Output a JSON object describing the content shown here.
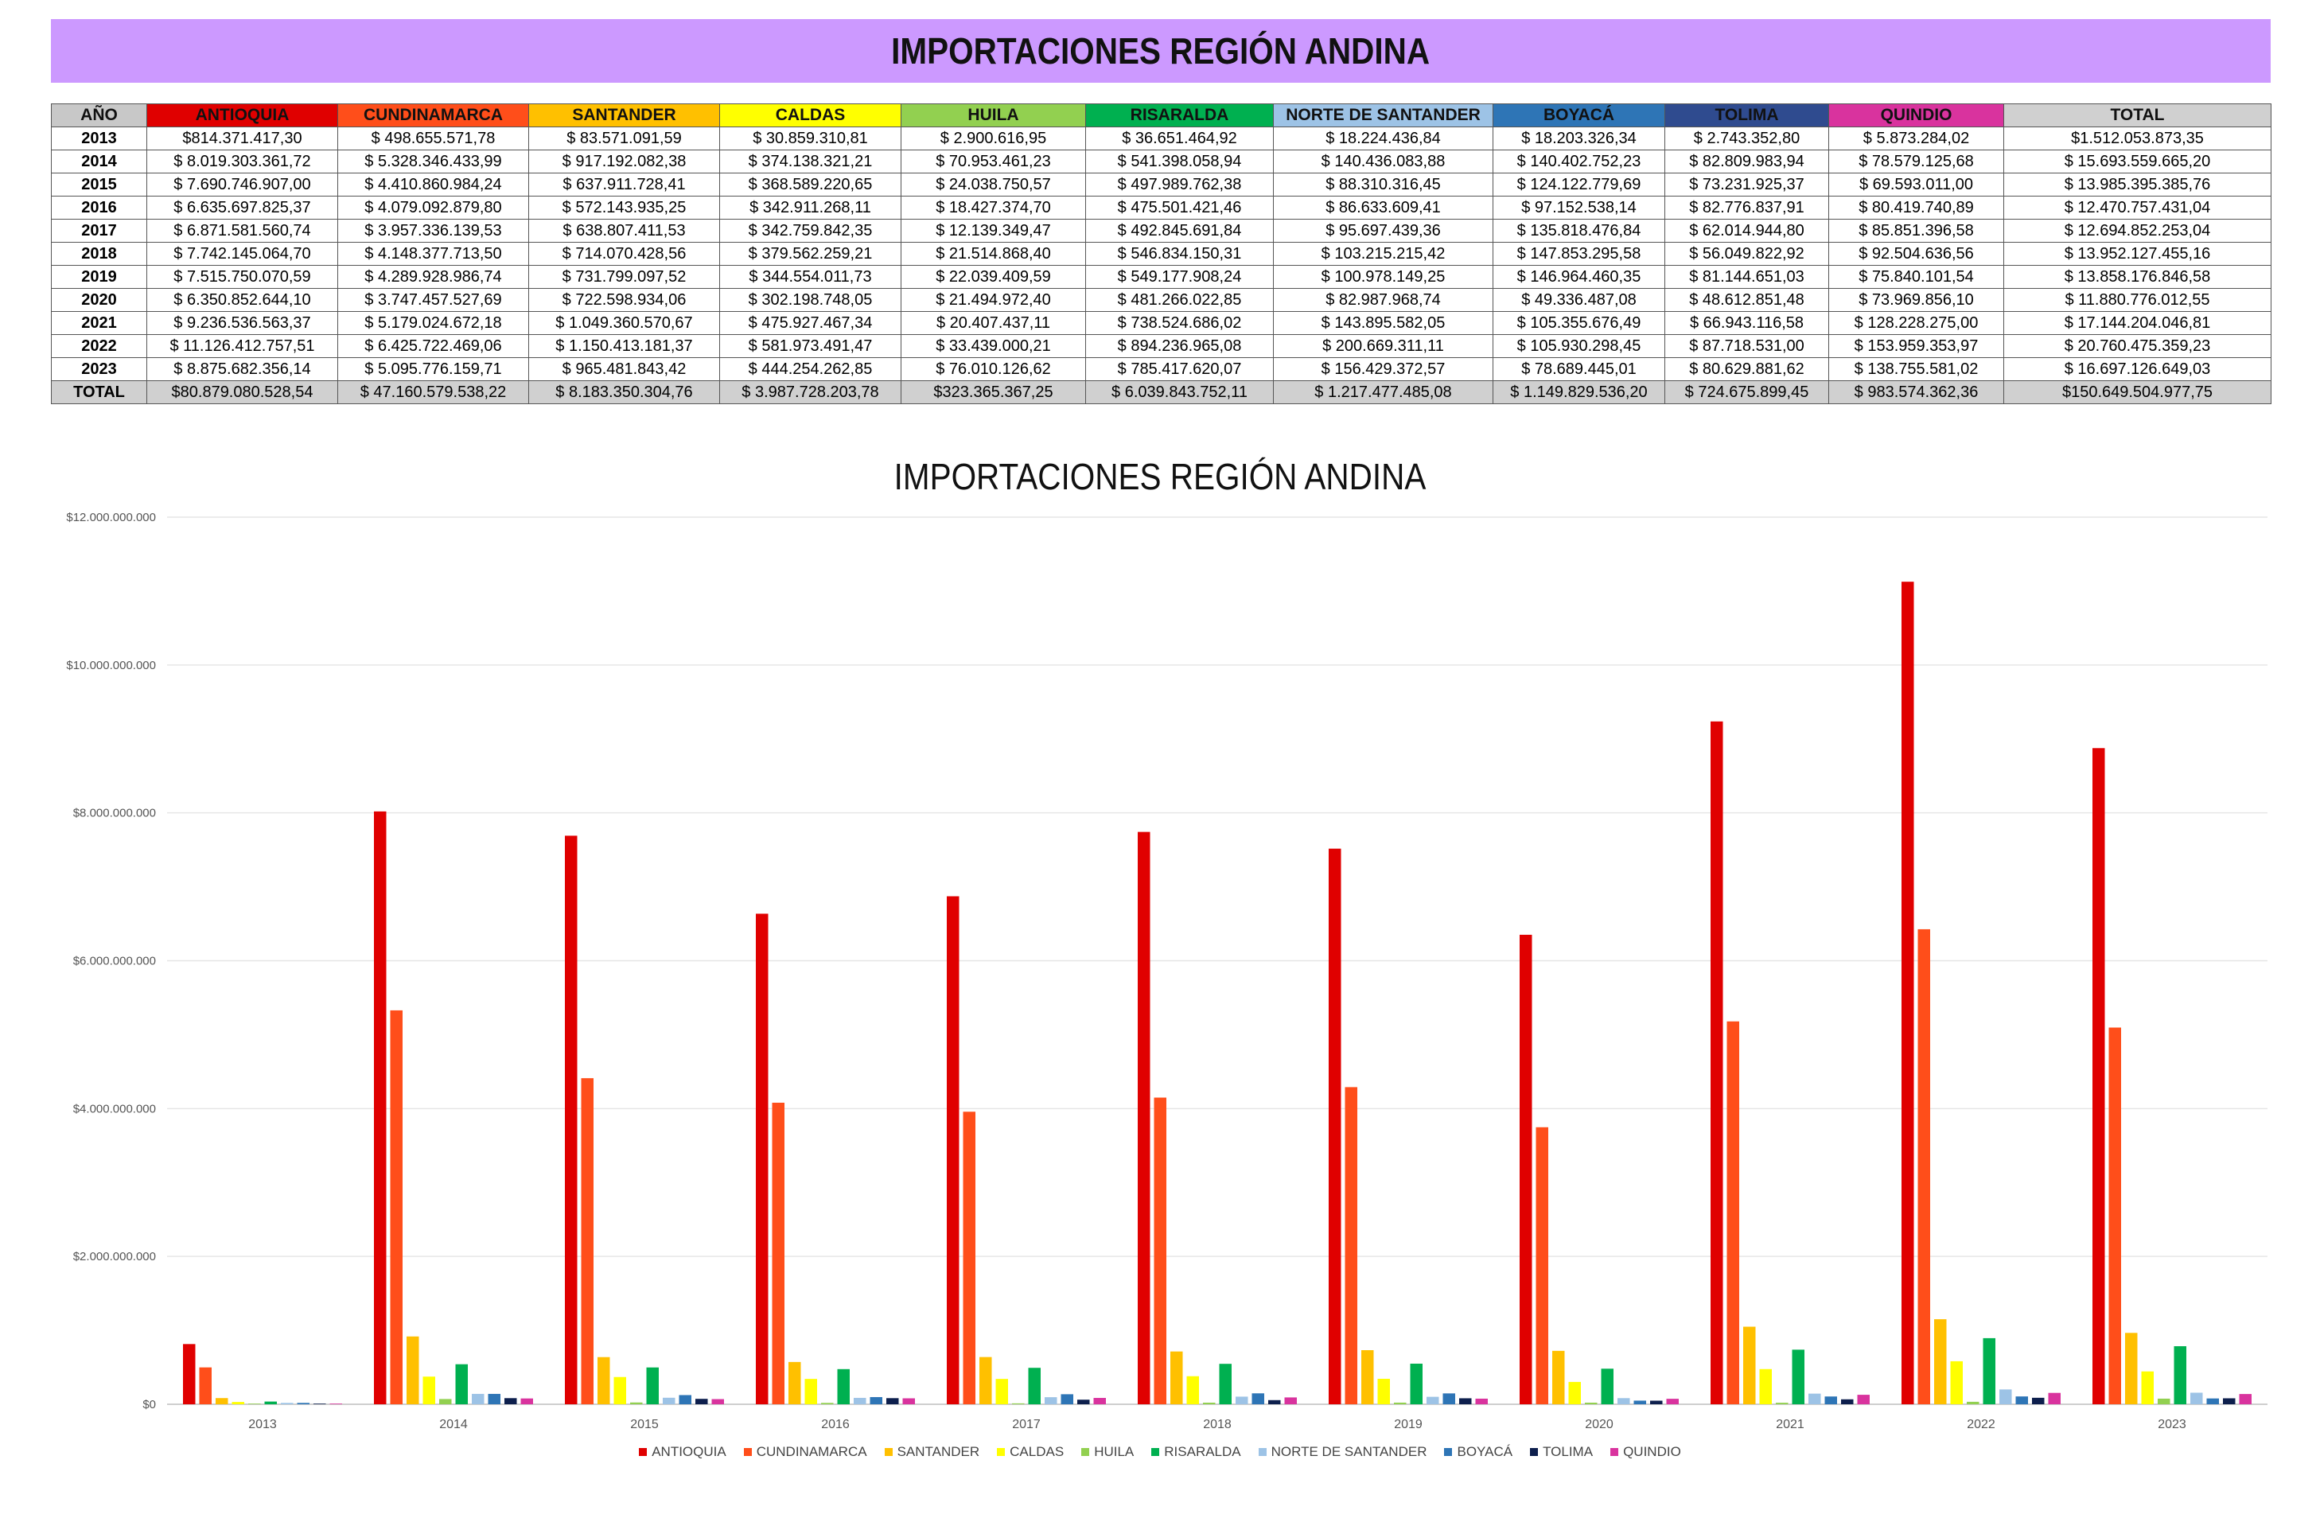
{
  "banner_title": "IMPORTACIONES REGIÓN ANDINA",
  "table": {
    "header": [
      "AÑO",
      "ANTIOQUIA",
      "CUNDINAMARCA",
      "SANTANDER",
      "CALDAS",
      "HUILA",
      "RISARALDA",
      "NORTE DE SANTANDER",
      "BOYACÁ",
      "TOLIMA",
      "QUINDIO",
      "TOTAL"
    ],
    "header_colors": [
      "#c8c8c8",
      "#e00000",
      "#ff4e1a",
      "#ffc000",
      "#ffff00",
      "#92d050",
      "#00b050",
      "#9dc3e6",
      "#2e75b6",
      "#2f4b8f",
      "#d9339e",
      "#d0d0d0"
    ],
    "rows": [
      [
        "2013",
        "$814.371.417,30",
        "$ 498.655.571,78",
        "$ 83.571.091,59",
        "$ 30.859.310,81",
        "$ 2.900.616,95",
        "$ 36.651.464,92",
        "$ 18.224.436,84",
        "$ 18.203.326,34",
        "$ 2.743.352,80",
        "$ 5.873.284,02",
        "$1.512.053.873,35"
      ],
      [
        "2014",
        "$ 8.019.303.361,72",
        "$ 5.328.346.433,99",
        "$ 917.192.082,38",
        "$ 374.138.321,21",
        "$ 70.953.461,23",
        "$ 541.398.058,94",
        "$ 140.436.083,88",
        "$ 140.402.752,23",
        "$ 82.809.983,94",
        "$ 78.579.125,68",
        "$ 15.693.559.665,20"
      ],
      [
        "2015",
        "$ 7.690.746.907,00",
        "$ 4.410.860.984,24",
        "$ 637.911.728,41",
        "$ 368.589.220,65",
        "$ 24.038.750,57",
        "$ 497.989.762,38",
        "$ 88.310.316,45",
        "$ 124.122.779,69",
        "$ 73.231.925,37",
        "$ 69.593.011,00",
        "$ 13.985.395.385,76"
      ],
      [
        "2016",
        "$ 6.635.697.825,37",
        "$ 4.079.092.879,80",
        "$ 572.143.935,25",
        "$ 342.911.268,11",
        "$ 18.427.374,70",
        "$ 475.501.421,46",
        "$ 86.633.609,41",
        "$ 97.152.538,14",
        "$ 82.776.837,91",
        "$ 80.419.740,89",
        "$ 12.470.757.431,04"
      ],
      [
        "2017",
        "$ 6.871.581.560,74",
        "$ 3.957.336.139,53",
        "$ 638.807.411,53",
        "$ 342.759.842,35",
        "$ 12.139.349,47",
        "$ 492.845.691,84",
        "$ 95.697.439,36",
        "$ 135.818.476,84",
        "$ 62.014.944,80",
        "$ 85.851.396,58",
        "$ 12.694.852.253,04"
      ],
      [
        "2018",
        "$ 7.742.145.064,70",
        "$ 4.148.377.713,50",
        "$ 714.070.428,56",
        "$ 379.562.259,21",
        "$ 21.514.868,40",
        "$ 546.834.150,31",
        "$ 103.215.215,42",
        "$ 147.853.295,58",
        "$ 56.049.822,92",
        "$ 92.504.636,56",
        "$ 13.952.127.455,16"
      ],
      [
        "2019",
        "$ 7.515.750.070,59",
        "$ 4.289.928.986,74",
        "$ 731.799.097,52",
        "$ 344.554.011,73",
        "$ 22.039.409,59",
        "$ 549.177.908,24",
        "$ 100.978.149,25",
        "$ 146.964.460,35",
        "$ 81.144.651,03",
        "$ 75.840.101,54",
        "$ 13.858.176.846,58"
      ],
      [
        "2020",
        "$ 6.350.852.644,10",
        "$ 3.747.457.527,69",
        "$ 722.598.934,06",
        "$ 302.198.748,05",
        "$ 21.494.972,40",
        "$ 481.266.022,85",
        "$ 82.987.968,74",
        "$ 49.336.487,08",
        "$ 48.612.851,48",
        "$ 73.969.856,10",
        "$ 11.880.776.012,55"
      ],
      [
        "2021",
        "$ 9.236.536.563,37",
        "$ 5.179.024.672,18",
        "$ 1.049.360.570,67",
        "$ 475.927.467,34",
        "$ 20.407.437,11",
        "$ 738.524.686,02",
        "$ 143.895.582,05",
        "$ 105.355.676,49",
        "$ 66.943.116,58",
        "$ 128.228.275,00",
        "$ 17.144.204.046,81"
      ],
      [
        "2022",
        "$ 11.126.412.757,51",
        "$ 6.425.722.469,06",
        "$ 1.150.413.181,37",
        "$ 581.973.491,47",
        "$ 33.439.000,21",
        "$ 894.236.965,08",
        "$ 200.669.311,11",
        "$ 105.930.298,45",
        "$ 87.718.531,00",
        "$ 153.959.353,97",
        "$ 20.760.475.359,23"
      ],
      [
        "2023",
        "$ 8.875.682.356,14",
        "$ 5.095.776.159,71",
        "$ 965.481.843,42",
        "$ 444.254.262,85",
        "$ 76.010.126,62",
        "$ 785.417.620,07",
        "$ 156.429.372,57",
        "$ 78.689.445,01",
        "$ 80.629.881,62",
        "$ 138.755.581,02",
        "$ 16.697.126.649,03"
      ]
    ],
    "total_row": [
      "TOTAL",
      "$80.879.080.528,54",
      "$ 47.160.579.538,22",
      "$ 8.183.350.304,76",
      "$ 3.987.728.203,78",
      "$323.365.367,25",
      "$ 6.039.843.752,11",
      "$ 1.217.477.485,08",
      "$ 1.149.829.536,20",
      "$ 724.675.899,45",
      "$ 983.574.362,36",
      "$150.649.504.977,75"
    ]
  },
  "chart_data": {
    "type": "bar",
    "title": "IMPORTACIONES REGIÓN ANDINA",
    "categories": [
      "2013",
      "2014",
      "2015",
      "2016",
      "2017",
      "2018",
      "2019",
      "2020",
      "2021",
      "2022",
      "2023"
    ],
    "ylim": [
      0,
      12000000000
    ],
    "y_ticks": [
      0,
      2000000000,
      4000000000,
      6000000000,
      8000000000,
      10000000000,
      12000000000
    ],
    "y_tick_labels": [
      "$0",
      "$2.000.000.000",
      "$4.000.000.000",
      "$6.000.000.000",
      "$8.000.000.000",
      "$10.000.000.000",
      "$12.000.000.000"
    ],
    "grid": true,
    "legend_position": "bottom",
    "series": [
      {
        "name": "ANTIOQUIA",
        "color": "#e00000",
        "values": [
          814371417.3,
          8019303361.72,
          7690746907.0,
          6635697825.37,
          6871581560.74,
          7742145064.7,
          7515750070.59,
          6350852644.1,
          9236536563.37,
          11126412757.51,
          8875682356.14
        ]
      },
      {
        "name": "CUNDINAMARCA",
        "color": "#ff4e1a",
        "values": [
          498655571.78,
          5328346433.99,
          4410860984.24,
          4079092879.8,
          3957336139.53,
          4148377713.5,
          4289928986.74,
          3747457527.69,
          5179024672.18,
          6425722469.06,
          5095776159.71
        ]
      },
      {
        "name": "SANTANDER",
        "color": "#ffc000",
        "values": [
          83571091.59,
          917192082.38,
          637911728.41,
          572143935.25,
          638807411.53,
          714070428.56,
          731799097.52,
          722598934.06,
          1049360570.67,
          1150413181.37,
          965481843.42
        ]
      },
      {
        "name": "CALDAS",
        "color": "#ffff00",
        "values": [
          30859310.81,
          374138321.21,
          368589220.65,
          342911268.11,
          342759842.35,
          379562259.21,
          344554011.73,
          302198748.05,
          475927467.34,
          581973491.47,
          444254262.85
        ]
      },
      {
        "name": "HUILA",
        "color": "#92d050",
        "values": [
          2900616.95,
          70953461.23,
          24038750.57,
          18427374.7,
          12139349.47,
          21514868.4,
          22039409.59,
          21494972.4,
          20407437.11,
          33439000.21,
          76010126.62
        ]
      },
      {
        "name": "RISARALDA",
        "color": "#00b050",
        "values": [
          36651464.92,
          541398058.94,
          497989762.38,
          475501421.46,
          492845691.84,
          546834150.31,
          549177908.24,
          481266022.85,
          738524686.02,
          894236965.08,
          785417620.07
        ]
      },
      {
        "name": "NORTE DE SANTANDER",
        "color": "#9dc3e6",
        "values": [
          18224436.84,
          140436083.88,
          88310316.45,
          86633609.41,
          95697439.36,
          103215215.42,
          100978149.25,
          82987968.74,
          143895582.05,
          200669311.11,
          156429372.57
        ]
      },
      {
        "name": "BOYACÁ",
        "color": "#2e75b6",
        "values": [
          18203326.34,
          140402752.23,
          124122779.69,
          97152538.14,
          135818476.84,
          147853295.58,
          146964460.35,
          49336487.08,
          105355676.49,
          105930298.45,
          78689445.01
        ]
      },
      {
        "name": "TOLIMA",
        "color": "#0d1f4d",
        "values": [
          2743352.8,
          82809983.94,
          73231925.37,
          82776837.91,
          62014944.8,
          56049822.92,
          81144651.03,
          48612851.48,
          66943116.58,
          87718531.0,
          80629881.62
        ]
      },
      {
        "name": "QUINDIO",
        "color": "#d9339e",
        "values": [
          5873284.02,
          78579125.68,
          69593011.0,
          80419740.89,
          85851396.58,
          92504636.56,
          75840101.54,
          73969856.1,
          128228275.0,
          153959353.97,
          138755581.02
        ]
      }
    ]
  }
}
